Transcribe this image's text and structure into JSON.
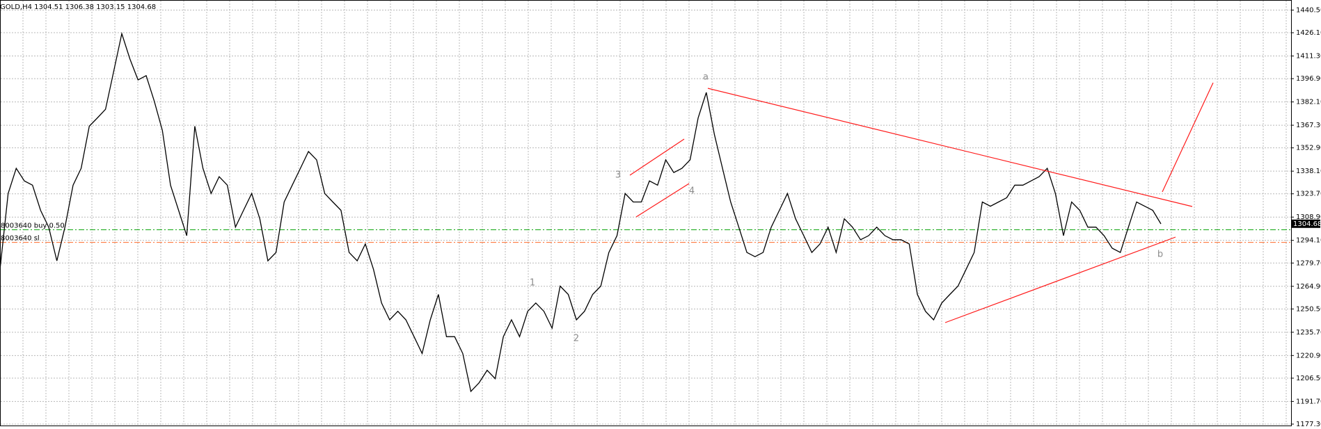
{
  "chart_data": {
    "type": "line",
    "title": "GOLD,H4  1304.51 1306.38 1303.15 1304.68",
    "color": "#000000",
    "grid": true,
    "ylim": [
      1176.4,
      1446.9
    ],
    "yticks": [
      {
        "value": 1440.5,
        "label": "1440.50"
      },
      {
        "value": 1426.1,
        "label": "1426.10"
      },
      {
        "value": 1411.3,
        "label": "1411.30"
      },
      {
        "value": 1396.9,
        "label": "1396.90"
      },
      {
        "value": 1382.1,
        "label": "1382.10"
      },
      {
        "value": 1367.3,
        "label": "1367.30"
      },
      {
        "value": 1352.9,
        "label": "1352.90"
      },
      {
        "value": 1338.1,
        "label": "1338.10"
      },
      {
        "value": 1323.7,
        "label": "1323.70"
      },
      {
        "value": 1308.9,
        "label": "1308.90"
      },
      {
        "value": 1294.1,
        "label": "1294.10"
      },
      {
        "value": 1279.7,
        "label": "1279.70"
      },
      {
        "value": 1264.9,
        "label": "1264.90"
      },
      {
        "value": 1250.5,
        "label": "1250.50"
      },
      {
        "value": 1235.7,
        "label": "1235.70"
      },
      {
        "value": 1220.9,
        "label": "1220.90"
      },
      {
        "value": 1206.5,
        "label": "1206.50"
      },
      {
        "value": 1191.7,
        "label": "1191.70"
      },
      {
        "value": 1177.3,
        "label": "1177.30"
      }
    ],
    "values": [
      1275.7,
      1323.9,
      1339.9,
      1331.9,
      1329.2,
      1313.2,
      1302.5,
      1281.1,
      1302.5,
      1329.2,
      1339.9,
      1366.7,
      1372.0,
      1377.4,
      1401.4,
      1425.5,
      1409.5,
      1396.1,
      1398.8,
      1382.7,
      1364.0,
      1329.2,
      1313.2,
      1297.1,
      1366.7,
      1339.9,
      1323.9,
      1334.6,
      1329.2,
      1302.5,
      1313.2,
      1323.9,
      1307.8,
      1281.1,
      1286.4,
      1318.5,
      1329.2,
      1339.9,
      1350.6,
      1345.3,
      1323.9,
      1318.5,
      1313.2,
      1286.4,
      1281.1,
      1291.8,
      1275.7,
      1254.3,
      1243.6,
      1249.0,
      1243.6,
      1232.9,
      1222.2,
      1243.6,
      1259.7,
      1232.9,
      1232.9,
      1222.2,
      1198.1,
      1203.5,
      1211.5,
      1206.2,
      1232.9,
      1243.6,
      1232.9,
      1249.0,
      1254.3,
      1249.0,
      1238.3,
      1265.0,
      1259.7,
      1243.6,
      1249.0,
      1259.7,
      1265.0,
      1286.4,
      1297.1,
      1323.9,
      1318.5,
      1318.5,
      1331.9,
      1329.2,
      1345.3,
      1337.2,
      1339.9,
      1345.3,
      1372.0,
      1388.1,
      1361.3,
      1339.9,
      1318.5,
      1302.5,
      1286.4,
      1283.7,
      1286.4,
      1302.5,
      1313.2,
      1323.9,
      1307.8,
      1297.1,
      1286.4,
      1291.8,
      1302.5,
      1286.4,
      1307.8,
      1302.5,
      1294.5,
      1297.1,
      1302.5,
      1297.1,
      1294.5,
      1294.5,
      1291.8,
      1259.7,
      1249.0,
      1243.6,
      1254.3,
      1259.7,
      1265.0,
      1275.7,
      1286.4,
      1318.5,
      1315.8,
      1318.5,
      1321.2,
      1329.2,
      1329.2,
      1331.9,
      1334.6,
      1339.9,
      1323.9,
      1297.1,
      1318.5,
      1313.2,
      1302.5,
      1302.5,
      1297.1,
      1289.1,
      1286.4,
      1302.5,
      1318.5,
      1315.8,
      1313.2,
      1304.6
    ],
    "last_price": 1304.68,
    "order_lines": [
      {
        "value": 1300.9,
        "label": "8003640 buy 0.50",
        "color": "#00a000"
      },
      {
        "value": 1292.8,
        "label": "8003640 sl",
        "color": "#ff6a2a"
      }
    ],
    "annotations": [
      "a",
      "b",
      "1",
      "2",
      "3",
      "4"
    ]
  }
}
